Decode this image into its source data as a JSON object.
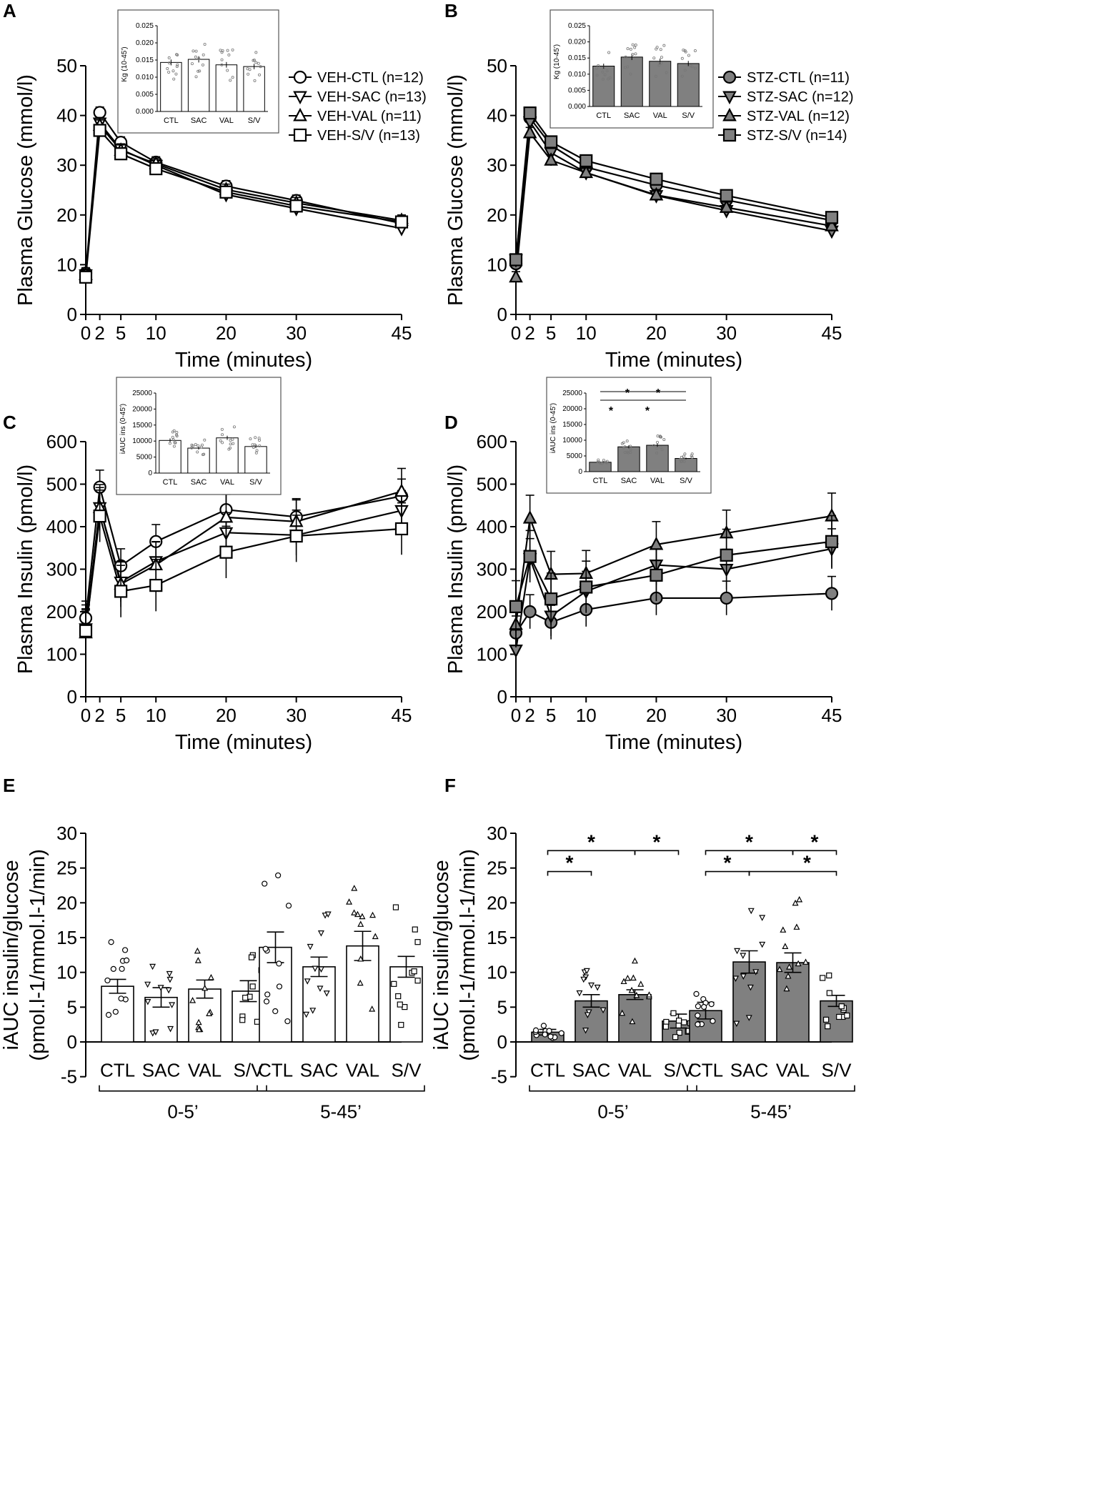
{
  "colors": {
    "line": "#000000",
    "fill_veh": "#ffffff",
    "fill_stz": "#808080"
  },
  "chart_data": [
    {
      "panel": "A",
      "type": "line",
      "x": [
        0,
        2,
        5,
        10,
        20,
        30,
        45
      ],
      "xticks": [
        "0",
        "2",
        "5",
        "10",
        "20",
        "30",
        "45"
      ],
      "yticks": [
        "0",
        "10",
        "20",
        "30",
        "40",
        "50"
      ],
      "ylim": [
        0,
        50
      ],
      "xlabel": "Time (minutes)",
      "ylabel": "Plasma Glucose (mmol/l)",
      "series": [
        {
          "name": "VEH-CTL (n=12)",
          "marker": "circle",
          "values": [
            8.3,
            40.6,
            34.6,
            30.6,
            25.8,
            22.9,
            18.3
          ]
        },
        {
          "name": "VEH-SAC (n=13)",
          "marker": "tri-down",
          "values": [
            8,
            38.5,
            33.2,
            30.0,
            24.1,
            21.3,
            17.3
          ]
        },
        {
          "name": "VEH-VAL (n=11)",
          "marker": "tri-up",
          "values": [
            8,
            38.0,
            33.0,
            30.3,
            25.1,
            22.4,
            18.9
          ]
        },
        {
          "name": "VEH-S/V (n=13)",
          "marker": "square",
          "values": [
            7.5,
            37.0,
            32.3,
            29.3,
            24.6,
            21.8,
            18.6
          ]
        }
      ],
      "inset": {
        "type": "bar",
        "ylabel": "Kg (10-45')",
        "categories": [
          "CTL",
          "SAC",
          "VAL",
          "S/V"
        ],
        "values": [
          0.0143,
          0.0152,
          0.0136,
          0.0131
        ],
        "ylim": [
          0,
          0.025
        ],
        "yticks": [
          "0.000",
          "0.005",
          "0.010",
          "0.015",
          "0.020",
          "0.025"
        ]
      }
    },
    {
      "panel": "B",
      "type": "line",
      "x": [
        0,
        2,
        5,
        10,
        20,
        30,
        45
      ],
      "xticks": [
        "0",
        "2",
        "5",
        "10",
        "20",
        "30",
        "45"
      ],
      "yticks": [
        "0",
        "10",
        "20",
        "30",
        "40",
        "50"
      ],
      "ylim": [
        0,
        50
      ],
      "xlabel": "Time (minutes)",
      "ylabel": "Plasma Glucose (mmol/l)",
      "series": [
        {
          "name": "STZ-CTL (n=11)",
          "marker": "circle",
          "values": [
            10.2,
            39.5,
            34.0,
            29.6,
            26.0,
            23.0,
            18.9
          ]
        },
        {
          "name": "STZ-SAC (n=12)",
          "marker": "tri-down",
          "values": [
            11.0,
            38.7,
            32.5,
            28.5,
            23.9,
            20.9,
            16.8
          ]
        },
        {
          "name": "STZ-VAL (n=12)",
          "marker": "tri-up",
          "values": [
            7.5,
            36.5,
            31.0,
            28.5,
            24.0,
            21.5,
            17.8
          ]
        },
        {
          "name": "STZ-S/V (n=14)",
          "marker": "square",
          "values": [
            11.0,
            40.5,
            34.7,
            30.9,
            27.2,
            23.9,
            19.5
          ]
        }
      ],
      "inset": {
        "type": "bar",
        "ylabel": "Kg (10-45')",
        "categories": [
          "CTL",
          "SAC",
          "VAL",
          "S/V"
        ],
        "values": [
          0.0125,
          0.0153,
          0.014,
          0.0133
        ],
        "ylim": [
          0,
          0.025
        ],
        "yticks": [
          "0.000",
          "0.005",
          "0.010",
          "0.015",
          "0.020",
          "0.025"
        ]
      }
    },
    {
      "panel": "C",
      "type": "line",
      "x": [
        0,
        2,
        5,
        10,
        20,
        30,
        45
      ],
      "xticks": [
        "0",
        "2",
        "5",
        "10",
        "20",
        "30",
        "45"
      ],
      "yticks": [
        "0",
        "100",
        "200",
        "300",
        "400",
        "500",
        "600"
      ],
      "ylim": [
        0,
        600
      ],
      "xlabel": "Time (minutes)",
      "ylabel": "Plasma Insulin (pmol/l)",
      "series": [
        {
          "name": "VEH-CTL",
          "marker": "circle",
          "values": [
            185,
            493,
            308,
            365,
            440,
            423,
            472
          ]
        },
        {
          "name": "VEH-SAC",
          "marker": "tri-down",
          "values": [
            160,
            445,
            270,
            318,
            386,
            380,
            438
          ]
        },
        {
          "name": "VEH-VAL",
          "marker": "tri-up",
          "values": [
            150,
            445,
            265,
            310,
            422,
            412,
            483
          ]
        },
        {
          "name": "VEH-S/V",
          "marker": "square",
          "values": [
            155,
            425,
            248,
            262,
            340,
            378,
            395
          ]
        }
      ],
      "inset": {
        "type": "bar",
        "ylabel": "iAUC ins (0-45')",
        "categories": [
          "CTL",
          "SAC",
          "VAL",
          "S/V"
        ],
        "values": [
          10200,
          7800,
          11000,
          8300
        ],
        "ylim": [
          0,
          25000
        ],
        "yticks": [
          "0",
          "5000",
          "10000",
          "15000",
          "20000",
          "25000"
        ]
      }
    },
    {
      "panel": "D",
      "type": "line",
      "x": [
        0,
        2,
        5,
        10,
        20,
        30,
        45
      ],
      "xticks": [
        "0",
        "2",
        "5",
        "10",
        "20",
        "30",
        "45"
      ],
      "yticks": [
        "0",
        "100",
        "200",
        "300",
        "400",
        "500",
        "600"
      ],
      "ylim": [
        0,
        600
      ],
      "xlabel": "Time (minutes)",
      "ylabel": "Plasma Insulin (pmol/l)",
      "series": [
        {
          "name": "STZ-CTL",
          "marker": "circle",
          "values": [
            150,
            200,
            175,
            205,
            232,
            232,
            243
          ]
        },
        {
          "name": "STZ-SAC",
          "marker": "tri-down",
          "values": [
            110,
            325,
            190,
            248,
            310,
            300,
            348
          ]
        },
        {
          "name": "STZ-VAL",
          "marker": "tri-up",
          "values": [
            170,
            420,
            288,
            290,
            358,
            385,
            425
          ]
        },
        {
          "name": "STZ-S/V",
          "marker": "square",
          "values": [
            212,
            330,
            230,
            258,
            286,
            333,
            365
          ]
        }
      ],
      "inset": {
        "type": "bar",
        "ylabel": "iAUC ins (0-45')",
        "categories": [
          "CTL",
          "SAC",
          "VAL",
          "S/V"
        ],
        "values": [
          3000,
          7900,
          8400,
          4200
        ],
        "ylim": [
          0,
          25000
        ],
        "yticks": [
          "0",
          "5000",
          "10000",
          "15000",
          "20000",
          "25000"
        ]
      }
    },
    {
      "panel": "E",
      "type": "bar",
      "groups": [
        "0-5’",
        "5-45’"
      ],
      "categories": [
        "CTL",
        "SAC",
        "VAL",
        "S/V"
      ],
      "values": [
        [
          8.0,
          6.4,
          7.6,
          7.3
        ],
        [
          13.6,
          10.8,
          13.8,
          10.8
        ]
      ],
      "errors": [
        [
          1.0,
          1.4,
          1.3,
          1.5
        ],
        [
          2.2,
          1.4,
          2.1,
          1.5
        ]
      ],
      "ylim": [
        -5,
        30
      ],
      "yticks": [
        "-5",
        "0",
        "5",
        "10",
        "15",
        "20",
        "25",
        "30"
      ],
      "ylabel": "iAUC insulin/glucose (pmol.l-1/mmol.l-1/min)"
    },
    {
      "panel": "F",
      "type": "bar",
      "groups": [
        "0-5’",
        "5-45’"
      ],
      "categories": [
        "CTL",
        "SAC",
        "VAL",
        "S/V"
      ],
      "values": [
        [
          1.4,
          5.9,
          6.8,
          3.0
        ],
        [
          4.5,
          11.5,
          11.4,
          5.9
        ]
      ],
      "errors": [
        [
          0.4,
          0.9,
          0.7,
          1.0
        ],
        [
          1.2,
          1.6,
          1.4,
          0.8
        ]
      ],
      "ylim": [
        -5,
        30
      ],
      "yticks": [
        "-5",
        "0",
        "5",
        "10",
        "15",
        "20",
        "25",
        "30"
      ],
      "ylabel": "iAUC insulin/glucose (pmol.l-1/mmol.l-1/min)",
      "significance_marker": "*"
    }
  ]
}
